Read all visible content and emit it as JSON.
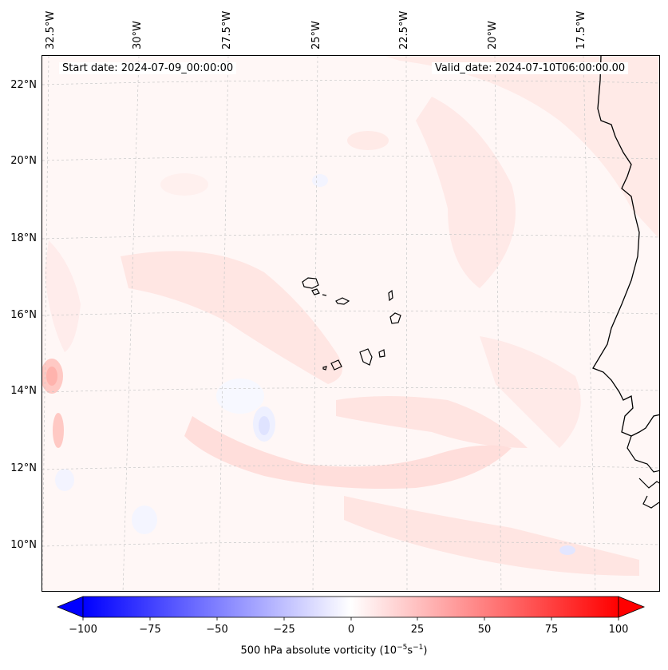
{
  "map": {
    "start_date": "Start date: 2024-07-09_00:00:00",
    "valid_date": "Valid_date: 2024-07-10T06:00:00.00",
    "longitude_labels": [
      "32.5°W",
      "30°W",
      "27.5°W",
      "25°W",
      "22.5°W",
      "20°W",
      "17.5°W"
    ],
    "latitude_labels": [
      "22°N",
      "20°N",
      "18°N",
      "16°N",
      "14°N",
      "12°N",
      "10°N"
    ],
    "field_units": "500 hPa absolute vorticity",
    "colors": {
      "negative": "#0000ff",
      "neutral": "#ffffff",
      "positive": "#ff0000",
      "coast": "#000000",
      "grid": "#c8c8c8"
    }
  },
  "colorbar": {
    "title_prefix": "500 hPa absolute vorticity (10",
    "title_exp1": "−5",
    "title_mid": "s",
    "title_exp2": "−1",
    "title_suffix": ")",
    "ticks": [
      "−100",
      "−75",
      "−50",
      "−25",
      "0",
      "25",
      "50",
      "75",
      "100"
    ],
    "range": [
      -100,
      100
    ]
  }
}
